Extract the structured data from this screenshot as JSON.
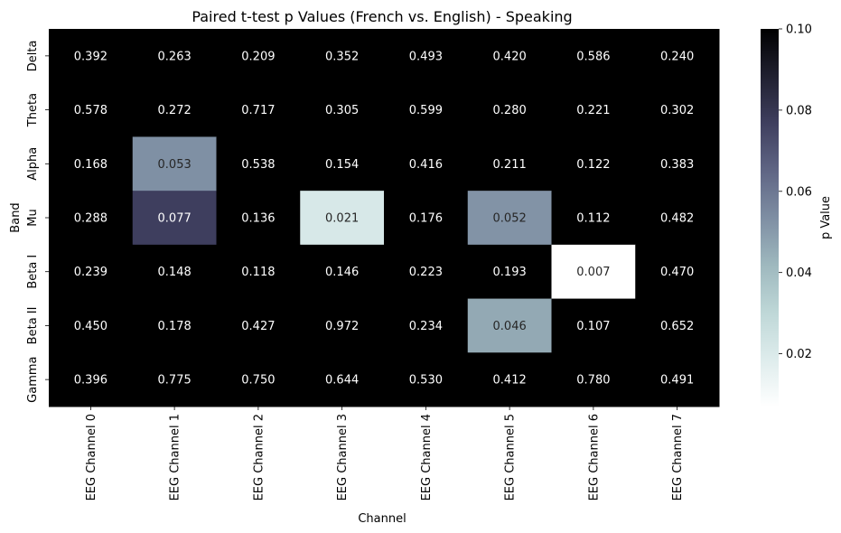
{
  "chart_data": {
    "type": "heatmap",
    "title": "Paired t-test p Values (French vs. English) - Speaking",
    "xlabel": "Channel",
    "ylabel": "Band",
    "x_categories": [
      "EEG Channel 0",
      "EEG Channel 1",
      "EEG Channel 2",
      "EEG Channel 3",
      "EEG Channel 4",
      "EEG Channel 5",
      "EEG Channel 6",
      "EEG Channel 7"
    ],
    "y_categories": [
      "Delta",
      "Theta",
      "Alpha",
      "Mu",
      "Beta I",
      "Beta II",
      "Gamma"
    ],
    "values": [
      [
        0.392,
        0.263,
        0.209,
        0.352,
        0.493,
        0.42,
        0.586,
        0.24
      ],
      [
        0.578,
        0.272,
        0.717,
        0.305,
        0.599,
        0.28,
        0.221,
        0.302
      ],
      [
        0.168,
        0.053,
        0.538,
        0.154,
        0.416,
        0.211,
        0.122,
        0.383
      ],
      [
        0.288,
        0.077,
        0.136,
        0.021,
        0.176,
        0.052,
        0.112,
        0.482
      ],
      [
        0.239,
        0.148,
        0.118,
        0.146,
        0.223,
        0.193,
        0.007,
        0.47
      ],
      [
        0.45,
        0.178,
        0.427,
        0.972,
        0.234,
        0.046,
        0.107,
        0.652
      ],
      [
        0.396,
        0.775,
        0.75,
        0.644,
        0.53,
        0.412,
        0.78,
        0.491
      ]
    ],
    "colorbar": {
      "label": "p Value",
      "range": [
        0.007,
        0.1
      ],
      "ticks": [
        "0.02",
        "0.04",
        "0.06",
        "0.08",
        "0.10"
      ],
      "colormap": "bone_r"
    },
    "cell_label_colors": {
      "dark_cell": "#ffffff",
      "light_cell": "#262626"
    }
  }
}
